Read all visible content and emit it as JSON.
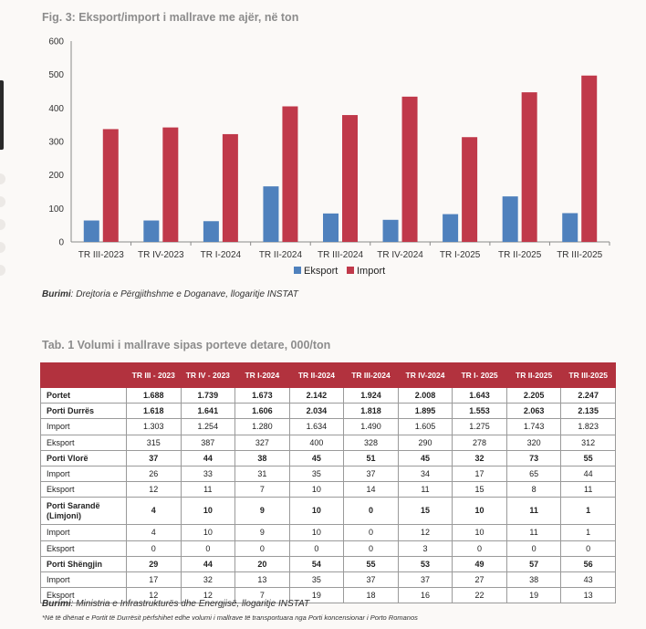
{
  "figure": {
    "title": "Fig. 3: Eksport/import i mallrave me ajër, në ton",
    "source_label": "Burimi",
    "source_text": ": Drejtoria e Përgjithshme e Doganave, llogaritje INSTAT"
  },
  "chart_data": {
    "type": "bar",
    "title": "Fig. 3: Eksport/import i mallrave me ajër, në ton",
    "categories": [
      "TR III-2023",
      "TR IV-2023",
      "TR I-2024",
      "TR II-2024",
      "TR III-2024",
      "TR IV-2024",
      "TR I-2025",
      "TR II-2025",
      "TR III-2025"
    ],
    "series": [
      {
        "name": "Eksport",
        "color": "#4f81bd",
        "values": [
          64,
          64,
          62,
          166,
          85,
          66,
          83,
          136,
          86
        ]
      },
      {
        "name": "Import",
        "color": "#c0394a",
        "values": [
          337,
          342,
          322,
          405,
          379,
          434,
          313,
          447,
          497
        ]
      }
    ],
    "ylim": [
      0,
      600
    ],
    "yticks": [
      0,
      100,
      200,
      300,
      400,
      500,
      600
    ],
    "legend": "bottom-center",
    "xlabel": "",
    "ylabel": ""
  },
  "table": {
    "title": "Tab. 1 Volumi i mallrave sipas porteve detare, 000/ton",
    "headers": [
      "",
      "TR III - 2023",
      "TR IV - 2023",
      "TR I-2024",
      "TR II-2024",
      "TR III-2024",
      "TR IV-2024",
      "TR I- 2025",
      "TR II-2025",
      "TR III-2025"
    ],
    "rows": [
      {
        "label": "Portet",
        "bold": true,
        "values": [
          "1.688",
          "1.739",
          "1.673",
          "2.142",
          "1.924",
          "2.008",
          "1.643",
          "2.205",
          "2.247"
        ]
      },
      {
        "label": "Porti Durrës",
        "bold": true,
        "values": [
          "1.618",
          "1.641",
          "1.606",
          "2.034",
          "1.818",
          "1.895",
          "1.553",
          "2.063",
          "2.135"
        ]
      },
      {
        "label": "Import",
        "bold": false,
        "values": [
          "1.303",
          "1.254",
          "1.280",
          "1.634",
          "1.490",
          "1.605",
          "1.275",
          "1.743",
          "1.823"
        ]
      },
      {
        "label": "Eksport",
        "bold": false,
        "values": [
          "315",
          "387",
          "327",
          "400",
          "328",
          "290",
          "278",
          "320",
          "312"
        ]
      },
      {
        "label": "Porti Vlorë",
        "bold": true,
        "values": [
          "37",
          "44",
          "38",
          "45",
          "51",
          "45",
          "32",
          "73",
          "55"
        ]
      },
      {
        "label": "Import",
        "bold": false,
        "values": [
          "26",
          "33",
          "31",
          "35",
          "37",
          "34",
          "17",
          "65",
          "44"
        ]
      },
      {
        "label": "Eksport",
        "bold": false,
        "values": [
          "12",
          "11",
          "7",
          "10",
          "14",
          "11",
          "15",
          "8",
          "11"
        ]
      },
      {
        "label": "Porti Sarandë (Limjoni)",
        "bold": true,
        "tall": true,
        "values": [
          "4",
          "10",
          "9",
          "10",
          "0",
          "15",
          "10",
          "11",
          "1"
        ]
      },
      {
        "label": "Import",
        "bold": false,
        "values": [
          "4",
          "10",
          "9",
          "10",
          "0",
          "12",
          "10",
          "11",
          "1"
        ]
      },
      {
        "label": "Eksport",
        "bold": false,
        "values": [
          "0",
          "0",
          "0",
          "0",
          "0",
          "3",
          "0",
          "0",
          "0"
        ]
      },
      {
        "label": "Porti Shëngjin",
        "bold": true,
        "values": [
          "29",
          "44",
          "20",
          "54",
          "55",
          "53",
          "49",
          "57",
          "56"
        ]
      },
      {
        "label": "Import",
        "bold": false,
        "values": [
          "17",
          "32",
          "13",
          "35",
          "37",
          "37",
          "27",
          "38",
          "43"
        ]
      },
      {
        "label": "Eksport",
        "bold": false,
        "values": [
          "12",
          "12",
          "7",
          "19",
          "18",
          "16",
          "22",
          "19",
          "13"
        ]
      }
    ],
    "source_label": "Burimi",
    "source_text": ": Ministria e Infrastrukturës dhe Energjisë, llogaritje INSTAT",
    "note": "*Në të dhënat e Portit të Durrësit përfshihet edhe volumi i mallrave të transportuara nga Porti koncensionar i Porto Romanos"
  }
}
